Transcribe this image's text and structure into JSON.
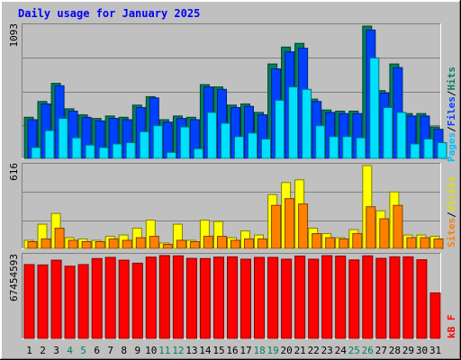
{
  "chart_data": {
    "type": "bar",
    "title": "Daily usage for January 2025",
    "days": [
      "1",
      "2",
      "3",
      "4",
      "5",
      "6",
      "7",
      "8",
      "9",
      "10",
      "11",
      "12",
      "13",
      "14",
      "15",
      "16",
      "17",
      "18",
      "19",
      "20",
      "21",
      "22",
      "23",
      "24",
      "25",
      "26",
      "27",
      "28",
      "29",
      "30",
      "31"
    ],
    "weekend_days": [
      "4",
      "5",
      "11",
      "12",
      "18",
      "19",
      "25",
      "26"
    ],
    "panels": {
      "hits_files_pages": {
        "max_label": "1093",
        "ymax": 1093,
        "legend": {
          "pages": "Pages",
          "files": "Files",
          "hits": "Hits",
          "sep": "/"
        },
        "series": [
          {
            "name": "Hits",
            "color": "#00805c",
            "values": [
              340,
              470,
              620,
              410,
              360,
              330,
              350,
              340,
              440,
              510,
              320,
              350,
              340,
              610,
              590,
              440,
              450,
              380,
              780,
              920,
              950,
              490,
              400,
              390,
              390,
              1093,
              560,
              780,
              370,
              370,
              260
            ]
          },
          {
            "name": "Files",
            "color": "#0040ff",
            "values": [
              320,
              450,
              600,
              390,
              340,
              310,
              330,
              320,
              420,
              500,
              300,
              330,
              320,
              590,
              570,
              420,
              430,
              360,
              740,
              880,
              910,
              470,
              380,
              370,
              370,
              1060,
              540,
              750,
              350,
              350,
              240
            ]
          },
          {
            "name": "Pages",
            "color": "#00e0ff",
            "values": [
              90,
              230,
              330,
              170,
              110,
              90,
              120,
              130,
              220,
              270,
              50,
              260,
              80,
              380,
              290,
              180,
              210,
              160,
              480,
              590,
              570,
              270,
              180,
              180,
              170,
              830,
              420,
              380,
              120,
              160,
              130
            ]
          }
        ]
      },
      "visits_sites": {
        "max_label": "616",
        "ymax": 616,
        "legend": {
          "sites": "Sites",
          "visits": "Visits",
          "sep": "/"
        },
        "series": [
          {
            "name": "Visits",
            "color": "#ffff00",
            "values": [
              60,
              180,
              260,
              80,
              70,
              60,
              90,
              100,
              150,
              210,
              40,
              180,
              60,
              210,
              200,
              80,
              130,
              100,
              400,
              490,
              510,
              150,
              110,
              80,
              140,
              616,
              280,
              420,
              100,
              100,
              90
            ]
          },
          {
            "name": "Sites",
            "color": "#ff8000",
            "values": [
              50,
              70,
              150,
              60,
              50,
              50,
              70,
              60,
              80,
              90,
              30,
              60,
              50,
              90,
              90,
              60,
              70,
              70,
              320,
              370,
              330,
              110,
              80,
              70,
              110,
              310,
              220,
              320,
              80,
              80,
              70
            ]
          }
        ]
      },
      "kbytes": {
        "max_label": "67454593",
        "ymax": 67454593,
        "legend": {
          "kbytes": "kB F"
        },
        "series": [
          {
            "name": "kB F",
            "color": "#ff0000",
            "values": [
              60100000,
              59800000,
              63700000,
              58800000,
              60100000,
              65000000,
              66000000,
              63700000,
              61300000,
              66200000,
              67454593,
              67200000,
              65200000,
              65000000,
              66200000,
              66400000,
              64500000,
              66000000,
              66000000,
              64500000,
              67000000,
              64500000,
              67400000,
              67000000,
              63900000,
              67200000,
              65200000,
              66400000,
              66400000,
              64100000,
              37000000
            ]
          }
        ]
      }
    }
  }
}
